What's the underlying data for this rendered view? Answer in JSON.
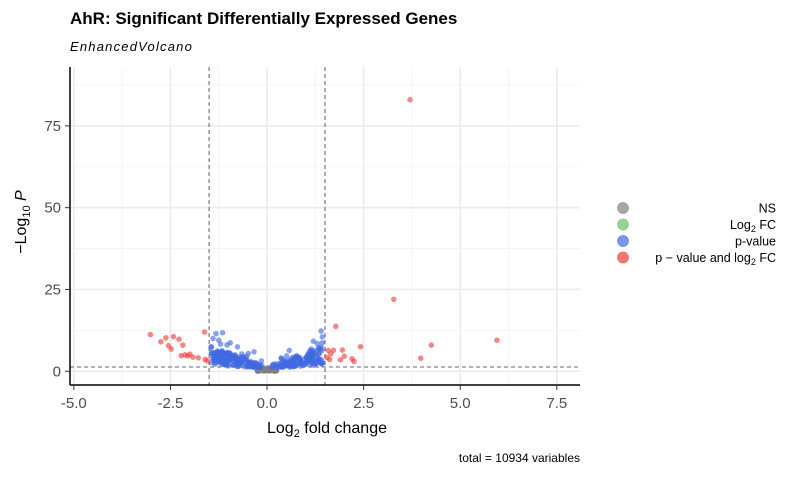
{
  "header": {
    "title": "AhR: Significant Differentially Expressed Genes",
    "subtitle": "EnhancedVolcano"
  },
  "caption": "total = 10934 variables",
  "colors": {
    "ns": "#808080",
    "log2fc": "#6abf69",
    "pvalue": "#4169e1",
    "both": "#f03b3b"
  },
  "chart_data": {
    "type": "scatter",
    "title": "AhR: Significant Differentially Expressed Genes",
    "subtitle": "EnhancedVolcano",
    "xlabel": {
      "main": "Log",
      "sub": "2",
      "rest": " fold change"
    },
    "ylabel": {
      "pre": "−Log",
      "sub": "10",
      "post": " P"
    },
    "xlim": [
      -5.1,
      8.1
    ],
    "ylim": [
      -4.2,
      93
    ],
    "xticks": [
      -5.0,
      -2.5,
      0.0,
      2.5,
      5.0,
      7.5
    ],
    "xtick_labels": [
      "-5.0",
      "-2.5",
      "0.0",
      "2.5",
      "5.0",
      "7.5"
    ],
    "yticks": [
      0,
      25,
      50,
      75
    ],
    "ytick_labels": [
      "0",
      "25",
      "50",
      "75"
    ],
    "cutoffs": {
      "fc": [
        -1.5,
        1.5
      ],
      "p_log10": 1.3
    },
    "grid": true,
    "legend_position": "right",
    "legend": [
      {
        "key": "ns",
        "label": "NS"
      },
      {
        "key": "log2fc",
        "label": "Log",
        "sub": "2",
        "rest": " FC"
      },
      {
        "key": "pvalue",
        "label": "p-value"
      },
      {
        "key": "both",
        "label": "p − value and log",
        "sub": "2",
        "rest": " FC"
      }
    ],
    "series": [
      {
        "key": "both",
        "points": [
          [
            3.7,
            83
          ],
          [
            3.28,
            22
          ],
          [
            5.95,
            9.5
          ],
          [
            4.25,
            8
          ],
          [
            3.98,
            4
          ],
          [
            2.42,
            7.5
          ],
          [
            1.78,
            13.7
          ],
          [
            2.2,
            3.8
          ],
          [
            2.25,
            3
          ],
          [
            2.0,
            4.6
          ],
          [
            1.9,
            3.5
          ],
          [
            1.62,
            3.6
          ],
          [
            1.58,
            6.4
          ],
          [
            1.65,
            5.3
          ],
          [
            1.72,
            6.4
          ],
          [
            1.55,
            4.2
          ],
          [
            1.95,
            6.5
          ],
          [
            -3.02,
            11.2
          ],
          [
            -2.62,
            10.2
          ],
          [
            -2.42,
            10.6
          ],
          [
            -2.28,
            9.8
          ],
          [
            -2.18,
            8
          ],
          [
            -2.55,
            7.8
          ],
          [
            -2.75,
            9
          ],
          [
            -2.48,
            6.8
          ],
          [
            -2.22,
            4.8
          ],
          [
            -2.12,
            5
          ],
          [
            -2.05,
            4.7
          ],
          [
            -1.92,
            4.3
          ],
          [
            -1.78,
            4.1
          ],
          [
            -1.62,
            12
          ],
          [
            -1.6,
            3.6
          ],
          [
            -1.55,
            3.2
          ],
          [
            -2.0,
            5.2
          ]
        ]
      },
      {
        "key": "pvalue",
        "points": [
          [
            -1.32,
            11.5
          ],
          [
            -1.25,
            9.5
          ],
          [
            -1.15,
            11.8
          ],
          [
            -0.95,
            8.7
          ],
          [
            -1.4,
            10
          ],
          [
            1.4,
            12.3
          ],
          [
            1.43,
            10.5
          ],
          [
            1.3,
            8.5
          ],
          [
            1.35,
            6.8
          ],
          [
            1.12,
            6.4
          ],
          [
            1.2,
            9.2
          ]
        ],
        "generated_cloud": {
          "count": 330,
          "x_range": [
            -1.45,
            1.45
          ]
        }
      },
      {
        "key": "ns",
        "generated_cloud": {
          "count": 60,
          "x_range": [
            -0.25,
            0.25
          ]
        }
      }
    ]
  }
}
